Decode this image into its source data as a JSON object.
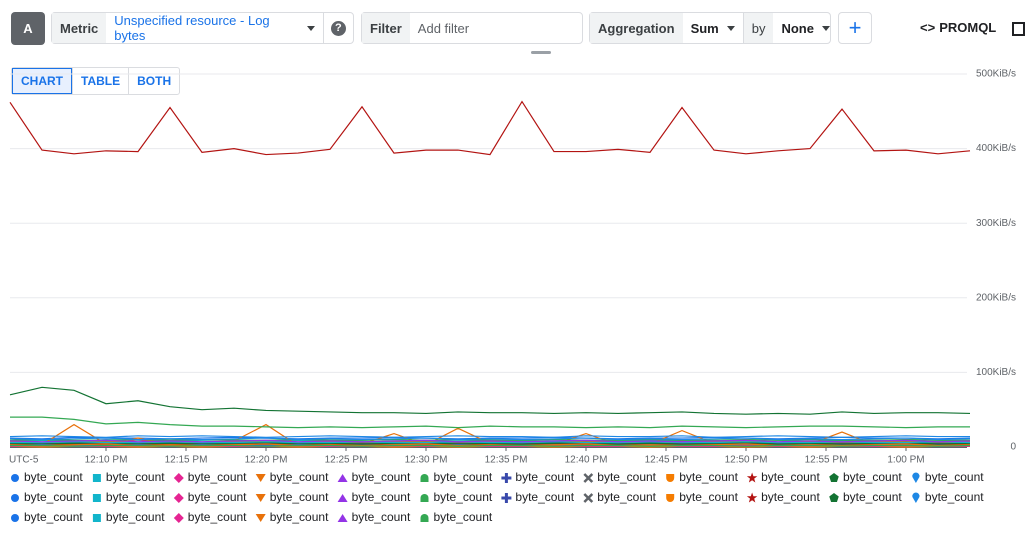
{
  "toolbar": {
    "query_letter": "A",
    "metric_label": "Metric",
    "metric_value": "Unspecified resource - Log bytes",
    "filter_label": "Filter",
    "filter_placeholder": "Add filter",
    "aggregation_label": "Aggregation",
    "aggregation_value": "Sum",
    "by_label": "by",
    "by_value": "None",
    "promql": "PROMQL"
  },
  "tabs": [
    "CHART",
    "TABLE",
    "BOTH"
  ],
  "chart_data": {
    "type": "line",
    "timezone_label": "UTC-5",
    "x": [
      0,
      2,
      4,
      6,
      8,
      10,
      12,
      14,
      16,
      18,
      20,
      22,
      24,
      26,
      28,
      30,
      32,
      34,
      36,
      38,
      40,
      42,
      44,
      46,
      48,
      50,
      52,
      54,
      56,
      58,
      60
    ],
    "xlim": [
      0,
      60
    ],
    "xticks": [
      {
        "value": 6,
        "label": "12:10 PM"
      },
      {
        "value": 11,
        "label": "12:15 PM"
      },
      {
        "value": 16,
        "label": "12:20 PM"
      },
      {
        "value": 21,
        "label": "12:25 PM"
      },
      {
        "value": 26,
        "label": "12:30 PM"
      },
      {
        "value": 31,
        "label": "12:35 PM"
      },
      {
        "value": 36,
        "label": "12:40 PM"
      },
      {
        "value": 41,
        "label": "12:45 PM"
      },
      {
        "value": 46,
        "label": "12:50 PM"
      },
      {
        "value": 51,
        "label": "12:55 PM"
      },
      {
        "value": 56,
        "label": "1:00 PM"
      }
    ],
    "ylim": [
      0,
      500
    ],
    "yticks": [
      0,
      {
        "value": 100,
        "label": "100KiB/s"
      },
      {
        "value": 200,
        "label": "200KiB/s"
      },
      {
        "value": 300,
        "label": "300KiB/s"
      },
      {
        "value": 400,
        "label": "400KiB/s"
      },
      {
        "value": 500,
        "label": "500KiB/s"
      }
    ],
    "grid": true,
    "series": [
      {
        "name": "byte_count",
        "color": "#1a73e8",
        "marker": "circle",
        "values": [
          12,
          11,
          13,
          12,
          12,
          11,
          12,
          13,
          12,
          11,
          12,
          12,
          13,
          12,
          11,
          12,
          12,
          13,
          12,
          11,
          12,
          12,
          13,
          12,
          11,
          12,
          13,
          12,
          12,
          11,
          12
        ]
      },
      {
        "name": "byte_count",
        "color": "#12b5cb",
        "marker": "square",
        "values": [
          8,
          9,
          8,
          10,
          9,
          8,
          9,
          10,
          8,
          9,
          8,
          9,
          10,
          9,
          8,
          9,
          8,
          10,
          9,
          8,
          9,
          8,
          9,
          10,
          9,
          8,
          9,
          8,
          10,
          9,
          8
        ]
      },
      {
        "name": "byte_count",
        "color": "#e52592",
        "marker": "diamond",
        "values": [
          3,
          2,
          4,
          3,
          10,
          2,
          3,
          2,
          3,
          4,
          3,
          2,
          3,
          9,
          2,
          3,
          4,
          2,
          3,
          2,
          3,
          8,
          2,
          3,
          4,
          3,
          2,
          3,
          9,
          2,
          3
        ]
      },
      {
        "name": "byte_count",
        "color": "#e8710a",
        "marker": "triangle-down",
        "values": [
          5,
          3,
          30,
          4,
          12,
          3,
          5,
          8,
          30,
          2,
          8,
          4,
          18,
          3,
          25,
          5,
          3,
          4,
          18,
          3,
          4,
          22,
          5,
          3,
          6,
          4,
          20,
          3,
          5,
          4,
          6
        ]
      },
      {
        "name": "byte_count",
        "color": "#9334e6",
        "marker": "triangle-up",
        "values": [
          5,
          6,
          5,
          4,
          6,
          5,
          6,
          5,
          4,
          5,
          6,
          5,
          4,
          5,
          6,
          5,
          5,
          4,
          6,
          5,
          5,
          6,
          4,
          5,
          6,
          5,
          4,
          5,
          6,
          5,
          5
        ]
      },
      {
        "name": "byte_count",
        "color": "#34a853",
        "marker": "dome",
        "values": [
          40,
          40,
          37,
          31,
          33,
          30,
          28,
          28,
          27,
          26,
          27,
          26,
          27,
          28,
          26,
          28,
          27,
          27,
          26,
          27,
          26,
          28,
          27,
          26,
          27,
          28,
          28,
          27,
          26,
          27,
          27
        ]
      },
      {
        "name": "byte_count",
        "color": "#3949ab",
        "marker": "plus",
        "values": [
          2,
          3,
          2,
          2,
          3,
          2,
          3,
          2,
          2,
          3,
          2,
          2,
          3,
          2,
          3,
          2,
          2,
          3,
          2,
          2,
          3,
          2,
          2,
          3,
          2,
          3,
          2,
          2,
          3,
          2,
          2
        ]
      },
      {
        "name": "byte_count",
        "color": "#5f6368",
        "marker": "cross",
        "values": [
          1,
          2,
          1,
          1,
          2,
          1,
          2,
          1,
          1,
          2,
          1,
          1,
          2,
          1,
          2,
          1,
          1,
          2,
          1,
          1,
          2,
          1,
          1,
          2,
          1,
          2,
          1,
          1,
          2,
          1,
          1
        ]
      },
      {
        "name": "byte_count",
        "color": "#f57c00",
        "marker": "shield",
        "values": [
          4,
          3,
          4,
          5,
          3,
          4,
          3,
          4,
          5,
          3,
          4,
          3,
          4,
          5,
          3,
          4,
          3,
          4,
          5,
          3,
          4,
          3,
          4,
          5,
          3,
          4,
          3,
          4,
          5,
          3,
          4
        ]
      },
      {
        "name": "byte_count",
        "color": "#b31412",
        "marker": "star",
        "values": [
          462,
          398,
          393,
          397,
          396,
          455,
          395,
          400,
          392,
          394,
          399,
          456,
          394,
          398,
          398,
          392,
          463,
          396,
          396,
          399,
          395,
          455,
          398,
          393,
          397,
          400,
          453,
          397,
          398,
          393,
          397
        ]
      },
      {
        "name": "byte_count",
        "color": "#137333",
        "marker": "pentagon",
        "values": [
          70,
          80,
          76,
          58,
          62,
          54,
          50,
          52,
          49,
          48,
          47,
          46,
          46,
          45,
          47,
          46,
          46,
          45,
          46,
          45,
          46,
          47,
          45,
          44,
          45,
          44,
          47,
          45,
          46,
          46,
          45
        ]
      },
      {
        "name": "byte_count",
        "color": "#1e88e5",
        "marker": "drop",
        "values": [
          14,
          15,
          14,
          13,
          15,
          14,
          15,
          14,
          13,
          14,
          15,
          14,
          13,
          14,
          15,
          14,
          14,
          13,
          15,
          14,
          14,
          15,
          13,
          14,
          15,
          14,
          13,
          14,
          15,
          14,
          14
        ]
      },
      {
        "name": "byte_count",
        "color": "#1a73e8",
        "marker": "circle",
        "values": [
          6,
          5,
          6,
          7,
          5,
          6,
          5,
          6,
          7,
          5,
          6,
          5,
          6,
          7,
          5,
          6,
          5,
          6,
          7,
          5,
          6,
          5,
          6,
          7,
          5,
          6,
          5,
          6,
          7,
          5,
          6
        ]
      },
      {
        "name": "byte_count",
        "color": "#12b5cb",
        "marker": "square",
        "values": [
          3,
          4,
          3,
          3,
          4,
          3,
          4,
          3,
          3,
          4,
          3,
          3,
          4,
          3,
          4,
          3,
          3,
          4,
          3,
          3,
          4,
          3,
          3,
          4,
          3,
          4,
          3,
          3,
          4,
          3,
          3
        ]
      },
      {
        "name": "byte_count",
        "color": "#e52592",
        "marker": "diamond",
        "values": [
          2,
          1,
          2,
          2,
          1,
          2,
          1,
          2,
          2,
          1,
          2,
          2,
          1,
          2,
          1,
          2,
          2,
          1,
          2,
          2,
          1,
          2,
          2,
          1,
          2,
          1,
          2,
          2,
          1,
          2,
          2
        ]
      },
      {
        "name": "byte_count",
        "color": "#e8710a",
        "marker": "triangle-down",
        "values": [
          7,
          6,
          7,
          8,
          6,
          7,
          6,
          7,
          8,
          6,
          7,
          6,
          7,
          8,
          6,
          7,
          6,
          7,
          8,
          6,
          7,
          6,
          7,
          8,
          6,
          7,
          6,
          7,
          8,
          6,
          7
        ]
      },
      {
        "name": "byte_count",
        "color": "#9334e6",
        "marker": "triangle-up",
        "values": [
          1,
          1,
          2,
          1,
          1,
          2,
          1,
          1,
          2,
          1,
          1,
          2,
          1,
          1,
          2,
          1,
          1,
          2,
          1,
          1,
          2,
          1,
          1,
          2,
          1,
          1,
          2,
          1,
          1,
          2,
          1
        ]
      },
      {
        "name": "byte_count",
        "color": "#34a853",
        "marker": "dome",
        "values": [
          9,
          10,
          9,
          9,
          10,
          9,
          10,
          9,
          9,
          10,
          9,
          9,
          10,
          9,
          10,
          9,
          9,
          10,
          9,
          9,
          10,
          9,
          9,
          10,
          9,
          10,
          9,
          9,
          10,
          9,
          9
        ]
      },
      {
        "name": "byte_count",
        "color": "#3949ab",
        "marker": "plus",
        "values": [
          2,
          2,
          3,
          2,
          2,
          3,
          2,
          2,
          3,
          2,
          2,
          3,
          2,
          2,
          3,
          2,
          2,
          3,
          2,
          2,
          3,
          2,
          2,
          3,
          2,
          2,
          3,
          2,
          2,
          3,
          2
        ]
      },
      {
        "name": "byte_count",
        "color": "#5f6368",
        "marker": "cross",
        "values": [
          4,
          4,
          5,
          4,
          4,
          5,
          4,
          4,
          5,
          4,
          4,
          5,
          4,
          4,
          5,
          4,
          4,
          5,
          4,
          4,
          5,
          4,
          4,
          5,
          4,
          4,
          5,
          4,
          4,
          5,
          4
        ]
      },
      {
        "name": "byte_count",
        "color": "#f57c00",
        "marker": "shield",
        "values": [
          1,
          0,
          1,
          1,
          0,
          1,
          0,
          1,
          1,
          0,
          1,
          1,
          0,
          1,
          0,
          1,
          1,
          0,
          1,
          1,
          0,
          1,
          1,
          0,
          1,
          0,
          1,
          1,
          0,
          1,
          1
        ]
      },
      {
        "name": "byte_count",
        "color": "#b31412",
        "marker": "star",
        "values": [
          3,
          3,
          4,
          3,
          3,
          4,
          3,
          3,
          4,
          3,
          3,
          4,
          3,
          3,
          4,
          3,
          3,
          4,
          3,
          3,
          4,
          3,
          3,
          4,
          3,
          3,
          4,
          3,
          3,
          4,
          3
        ]
      },
      {
        "name": "byte_count",
        "color": "#137333",
        "marker": "pentagon",
        "values": [
          5,
          4,
          5,
          6,
          4,
          5,
          4,
          5,
          6,
          4,
          5,
          4,
          5,
          6,
          4,
          5,
          4,
          5,
          6,
          4,
          5,
          4,
          5,
          6,
          4,
          5,
          4,
          5,
          6,
          4,
          5
        ]
      },
      {
        "name": "byte_count",
        "color": "#1e88e5",
        "marker": "drop",
        "values": [
          11,
          10,
          11,
          12,
          10,
          11,
          10,
          11,
          12,
          10,
          11,
          10,
          11,
          12,
          10,
          11,
          10,
          11,
          12,
          10,
          11,
          10,
          11,
          12,
          10,
          11,
          10,
          11,
          12,
          10,
          11
        ]
      },
      {
        "name": "byte_count",
        "color": "#1a73e8",
        "marker": "circle",
        "values": [
          2,
          3,
          2,
          2,
          3,
          2,
          3,
          2,
          2,
          3,
          2,
          2,
          3,
          2,
          3,
          2,
          2,
          3,
          2,
          2,
          3,
          2,
          2,
          3,
          2,
          3,
          2,
          2,
          3,
          2,
          2
        ]
      },
      {
        "name": "byte_count",
        "color": "#12b5cb",
        "marker": "square",
        "values": [
          6,
          6,
          7,
          6,
          6,
          7,
          6,
          6,
          7,
          6,
          6,
          7,
          6,
          6,
          7,
          6,
          6,
          7,
          6,
          6,
          7,
          6,
          6,
          7,
          6,
          6,
          7,
          6,
          6,
          7,
          6
        ]
      },
      {
        "name": "byte_count",
        "color": "#e52592",
        "marker": "diamond",
        "values": [
          1,
          2,
          1,
          1,
          2,
          1,
          2,
          1,
          1,
          2,
          1,
          1,
          2,
          1,
          2,
          1,
          1,
          2,
          1,
          1,
          2,
          1,
          1,
          2,
          1,
          2,
          1,
          1,
          2,
          1,
          1
        ]
      },
      {
        "name": "byte_count",
        "color": "#e8710a",
        "marker": "triangle-down",
        "values": [
          3,
          2,
          3,
          4,
          2,
          3,
          2,
          3,
          4,
          2,
          3,
          2,
          3,
          4,
          2,
          3,
          2,
          3,
          4,
          2,
          3,
          2,
          3,
          4,
          2,
          3,
          2,
          3,
          4,
          2,
          3
        ]
      },
      {
        "name": "byte_count",
        "color": "#9334e6",
        "marker": "triangle-up",
        "values": [
          8,
          7,
          8,
          9,
          7,
          8,
          7,
          8,
          9,
          7,
          8,
          7,
          8,
          9,
          7,
          8,
          7,
          8,
          9,
          7,
          8,
          7,
          8,
          9,
          7,
          8,
          7,
          8,
          9,
          7,
          8
        ]
      },
      {
        "name": "byte_count",
        "color": "#34a853",
        "marker": "dome",
        "values": [
          2,
          2,
          1,
          2,
          2,
          1,
          2,
          2,
          1,
          2,
          2,
          1,
          2,
          2,
          1,
          2,
          2,
          1,
          2,
          2,
          1,
          2,
          2,
          1,
          2,
          2,
          1,
          2,
          2,
          1,
          2
        ]
      }
    ]
  }
}
